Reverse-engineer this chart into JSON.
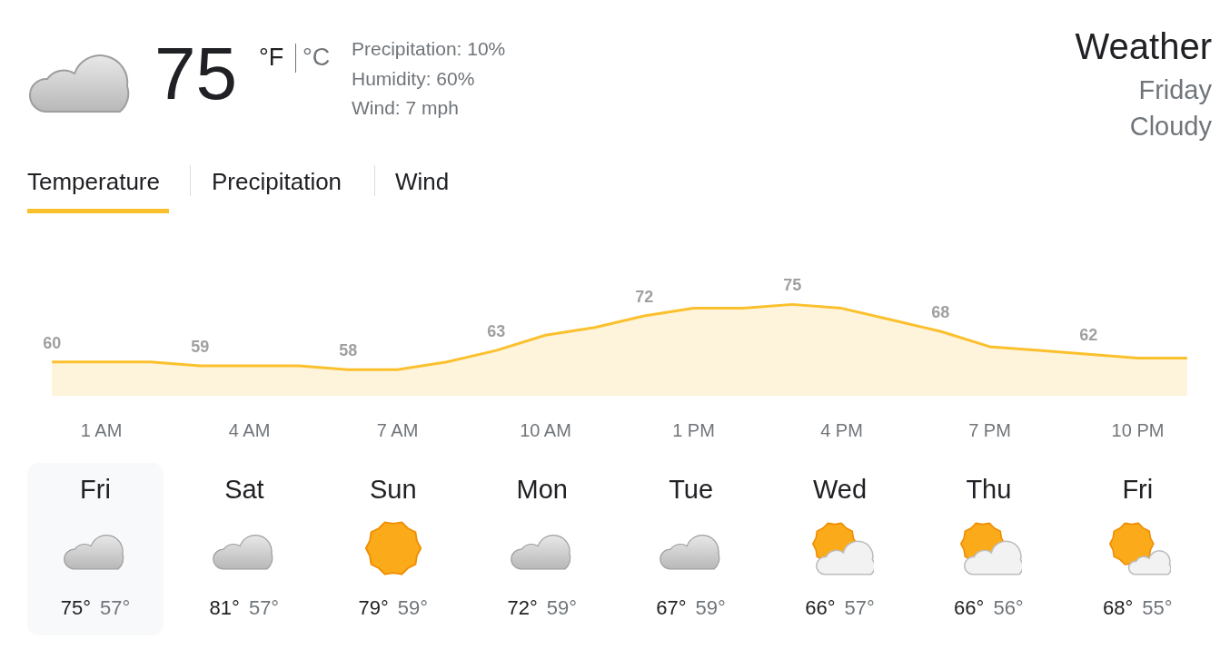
{
  "chart_data": [
    {
      "type": "area",
      "title": "Weather",
      "annotations": [
        "75",
        "°F",
        "°C",
        "Precipitation: 10%",
        "Humidity: 60%",
        "Wind: 7 mph",
        "Friday",
        "Cloudy",
        "Temperature",
        "Precipitation",
        "Wind"
      ],
      "categories": [
        null,
        "1 AM",
        null,
        null,
        "4 AM",
        null,
        null,
        "7 AM",
        null,
        null,
        "10 AM",
        null,
        null,
        "1 PM",
        null,
        null,
        "4 PM",
        null,
        null,
        "7 PM",
        null,
        null,
        "10 PM",
        null
      ],
      "series": [
        {
          "color": "#fbc02d",
          "values": [
            60,
            60,
            60,
            59,
            59,
            59,
            58,
            58,
            60,
            63,
            67,
            69,
            72,
            74,
            74,
            75,
            74,
            71,
            68,
            64,
            63,
            62,
            61,
            61
          ],
          "value_labels": [
            "60",
            null,
            null,
            "59",
            null,
            null,
            "58",
            null,
            null,
            "63",
            null,
            null,
            "72",
            null,
            null,
            "75",
            null,
            null,
            "68",
            null,
            null,
            "62",
            null,
            null
          ]
        }
      ],
      "tick_labels": "x",
      "marker": "none"
    },
    {
      "type": "other",
      "categories": [
        "Fri",
        "Sat",
        "Sun",
        "Mon",
        "Tue",
        "Wed",
        "Thu",
        "Fri"
      ],
      "series": [
        {
          "color": "#202124",
          "values": [
            75,
            81,
            79,
            72,
            67,
            66,
            66,
            68
          ],
          "value_labels": [
            "75°",
            "81°",
            "79°",
            "72°",
            "67°",
            "66°",
            "66°",
            "68°"
          ]
        },
        {
          "color": "#70757a",
          "values": [
            57,
            57,
            59,
            59,
            59,
            57,
            56,
            55
          ],
          "value_labels": [
            "57°",
            "57°",
            "59°",
            "59°",
            "59°",
            "57°",
            "56°",
            "55°"
          ]
        }
      ]
    }
  ]
}
